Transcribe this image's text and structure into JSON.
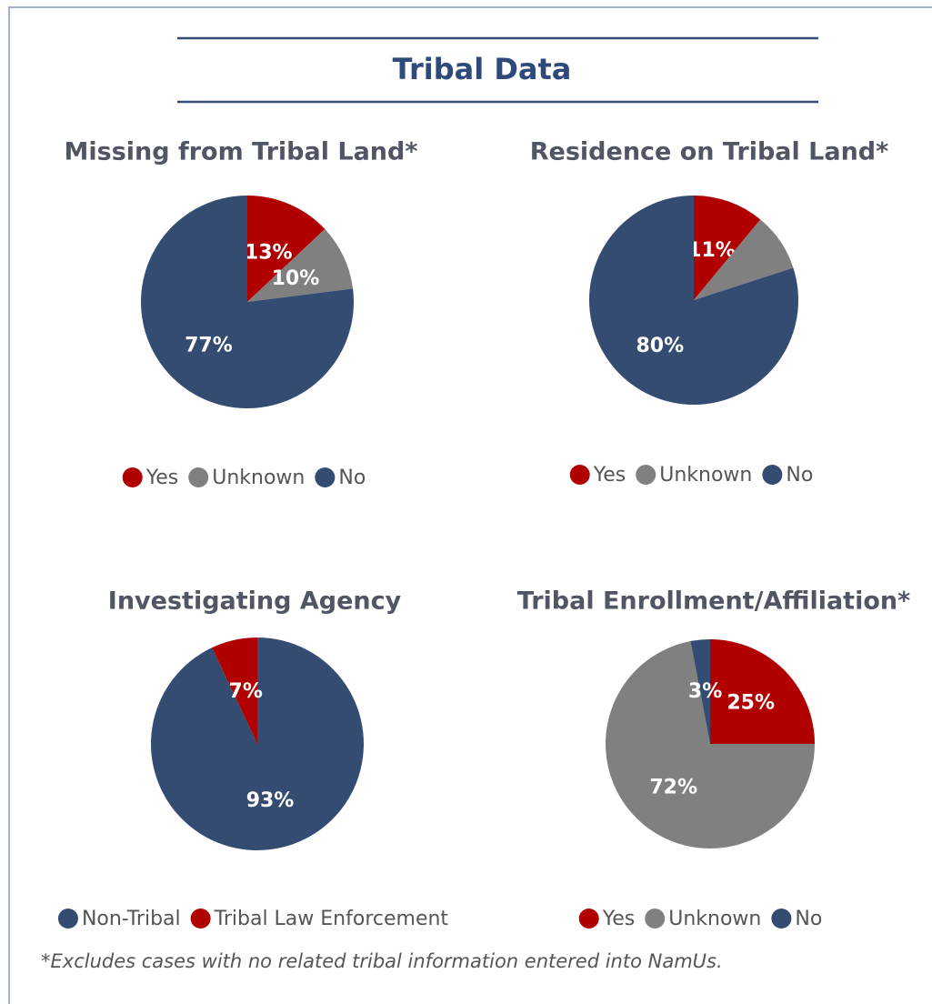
{
  "title": "Tribal Data",
  "footnote": "*Excludes cases with no related tribal information entered into NamUs.",
  "chart_data": [
    {
      "type": "pie",
      "title": "Missing from Tribal Land*",
      "categories": [
        "Yes",
        "Unknown",
        "No"
      ],
      "values": [
        13,
        10,
        77
      ],
      "value_labels": [
        "13%",
        "10%",
        "77%"
      ],
      "colors": [
        "#b00000",
        "#808080",
        "#344b72"
      ]
    },
    {
      "type": "pie",
      "title": "Residence on Tribal Land*",
      "categories": [
        "Yes",
        "Unknown",
        "No"
      ],
      "values": [
        11,
        9,
        80
      ],
      "value_labels": [
        "11%",
        null,
        "80%"
      ],
      "colors": [
        "#b00000",
        "#808080",
        "#344b72"
      ]
    },
    {
      "type": "pie",
      "title": "Investigating Agency",
      "categories": [
        "Non-Tribal",
        "Tribal Law Enforcement"
      ],
      "values": [
        93,
        7
      ],
      "value_labels": [
        "93%",
        "7%"
      ],
      "colors": [
        "#344b72",
        "#b00000"
      ]
    },
    {
      "type": "pie",
      "title": "Tribal  Enrollment/Affiliation*",
      "categories": [
        "Yes",
        "Unknown",
        "No"
      ],
      "values": [
        25,
        72,
        3
      ],
      "value_labels": [
        "25%",
        "72%",
        "3%"
      ],
      "colors": [
        "#b00000",
        "#808080",
        "#344b72"
      ]
    }
  ]
}
